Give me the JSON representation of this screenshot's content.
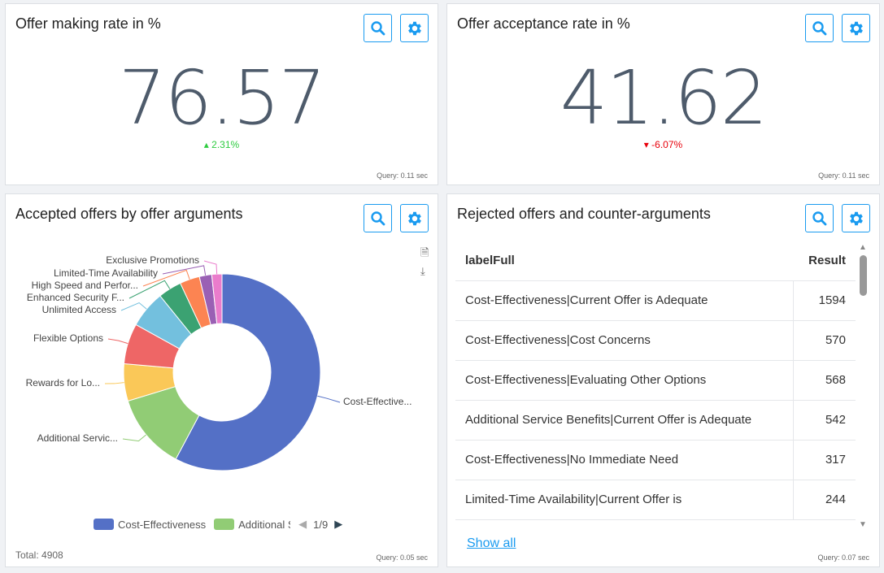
{
  "kpi1": {
    "title": "Offer making rate in %",
    "value": "76.57",
    "delta": "2.31%",
    "delta_color": "#2ecc40",
    "query": "Query: 0.11 sec"
  },
  "kpi2": {
    "title": "Offer acceptance rate in %",
    "value": "41.62",
    "delta": "-6.07%",
    "delta_color": "#e8000b",
    "query": "Query: 0.11 sec"
  },
  "donut": {
    "title": "Accepted offers by offer arguments",
    "total": "Total: 4908",
    "query": "Query: 0.05 sec",
    "legend": {
      "items": [
        "Cost-Effectiveness",
        "Additional S"
      ],
      "page": "1/9"
    }
  },
  "chart_data": {
    "type": "pie",
    "title": "Accepted offers by offer arguments",
    "total": 4908,
    "categories": [
      "Cost-Effectiveness",
      "Additional Services",
      "Rewards for Loyalty",
      "Flexible Options",
      "Unlimited Access",
      "Enhanced Security Features",
      "High Speed and Performance",
      "Limited-Time Availability",
      "Exclusive Promotions"
    ],
    "labels": [
      "Cost-Effective...",
      "Additional Servic...",
      "Rewards for Lo...",
      "Flexible Options",
      "Unlimited Access",
      "Enhanced Security F...",
      "High Speed and Perfor...",
      "Limited-Time Availability",
      "Exclusive Promotions"
    ],
    "values": [
      2836,
      613,
      300,
      327,
      300,
      190,
      160,
      100,
      82
    ],
    "colors": [
      "#5470c6",
      "#91cc75",
      "#fac858",
      "#ee6666",
      "#73c0de",
      "#3ba272",
      "#fc8452",
      "#9a60b4",
      "#ea7ccc"
    ]
  },
  "table": {
    "title": "Rejected offers and counter-arguments",
    "query": "Query: 0.07 sec",
    "show_all": "Show all",
    "headers": [
      "labelFull",
      "Result"
    ],
    "rows": [
      [
        "Cost-Effectiveness|Current Offer is Adequate",
        "1594"
      ],
      [
        "Cost-Effectiveness|Cost Concerns",
        "570"
      ],
      [
        "Cost-Effectiveness|Evaluating Other Options",
        "568"
      ],
      [
        "Additional Service Benefits|Current Offer is Adequate",
        "542"
      ],
      [
        "Cost-Effectiveness|No Immediate Need",
        "317"
      ],
      [
        "Limited-Time Availability|Current Offer is",
        "244"
      ]
    ]
  }
}
